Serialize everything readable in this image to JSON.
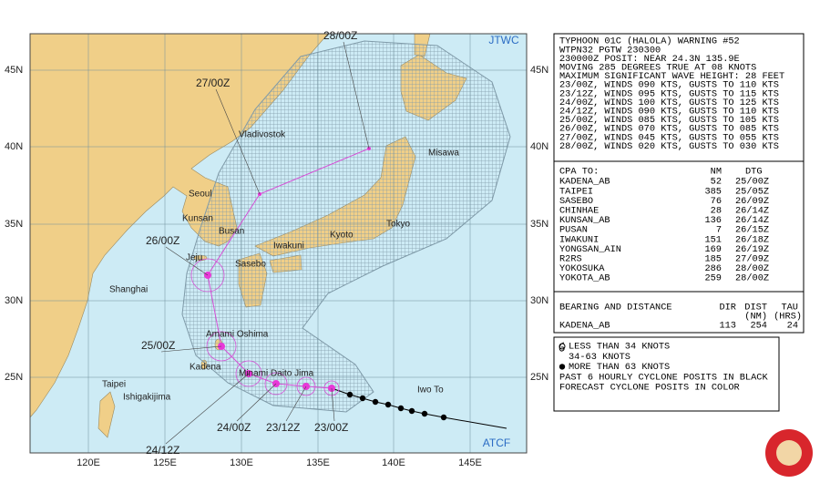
{
  "map": {
    "lat_labels": [
      "45N",
      "40N",
      "35N",
      "30N",
      "25N"
    ],
    "lon_labels": [
      "120E",
      "125E",
      "130E",
      "135E",
      "140E",
      "145E"
    ],
    "places": [
      "Vladivostok",
      "Seoul",
      "Kunsan",
      "Busan",
      "Jeju",
      "Sasebo",
      "Iwakuni",
      "Kyoto",
      "Tokyo",
      "Misawa",
      "Shanghai",
      "Amami Oshima",
      "Kadena",
      "Minami Daito Jima",
      "Taipei",
      "Ishigakijima",
      "Iwo To"
    ],
    "forecast_labels": [
      "28/00Z",
      "27/00Z",
      "26/00Z",
      "25/00Z",
      "24/12Z",
      "24/00Z",
      "23/12Z",
      "23/00Z"
    ],
    "agency": "JTWC",
    "system": "ATCF"
  },
  "warning": {
    "header": [
      "TYPHOON 01C (HALOLA) WARNING #52",
      "WTPN32 PGTW 230300",
      "230000Z POSIT: NEAR 24.3N 135.9E",
      "MOVING 285 DEGREES TRUE AT 08 KNOTS",
      "MAXIMUM SIGNIFICANT WAVE HEIGHT: 28 FEET"
    ],
    "forecasts": [
      "23/00Z, WINDS 090 KTS, GUSTS TO 110 KTS",
      "23/12Z, WINDS 095 KTS, GUSTS TO 115 KTS",
      "24/00Z, WINDS 100 KTS, GUSTS TO 125 KTS",
      "24/12Z, WINDS 090 KTS, GUSTS TO 110 KTS",
      "25/00Z, WINDS 085 KTS, GUSTS TO 105 KTS",
      "26/00Z, WINDS 070 KTS, GUSTS TO 085 KTS",
      "27/00Z, WINDS 045 KTS, GUSTS TO 055 KTS",
      "28/00Z, WINDS 020 KTS, GUSTS TO 030 KTS"
    ],
    "cpa": {
      "title": "CPA TO:",
      "nm": "NM",
      "dtg": "DTG",
      "rows": [
        [
          "KADENA_AB",
          52,
          "25/00Z"
        ],
        [
          "TAIPEI",
          385,
          "25/05Z"
        ],
        [
          "SASEBO",
          76,
          "26/09Z"
        ],
        [
          "CHINHAE",
          28,
          "26/14Z"
        ],
        [
          "KUNSAN_AB",
          136,
          "26/14Z"
        ],
        [
          "PUSAN",
          7,
          "26/15Z"
        ],
        [
          "IWAKUNI",
          151,
          "26/18Z"
        ],
        [
          "YONGSAN_AIN",
          169,
          "26/19Z"
        ],
        [
          "R2RS",
          185,
          "27/09Z"
        ],
        [
          "YOKOSUKA",
          286,
          "28/00Z"
        ],
        [
          "YOKOTA_AB",
          259,
          "28/00Z"
        ]
      ]
    },
    "bearing": {
      "title": "BEARING AND DISTANCE",
      "dir": "DIR",
      "dist": "DIST",
      "dist_unit": "(NM)",
      "tau": "TAU",
      "tau_unit": "(HRS)",
      "rows": [
        [
          "KADENA_AB",
          113,
          254,
          24
        ]
      ]
    }
  },
  "legend": [
    "LESS THAN 34 KNOTS",
    "34-63 KNOTS",
    "MORE THAN 63 KNOTS",
    "PAST 6 HOURLY CYCLONE POSITS IN BLACK",
    "FORECAST CYCLONE POSITS IN COLOR"
  ]
}
